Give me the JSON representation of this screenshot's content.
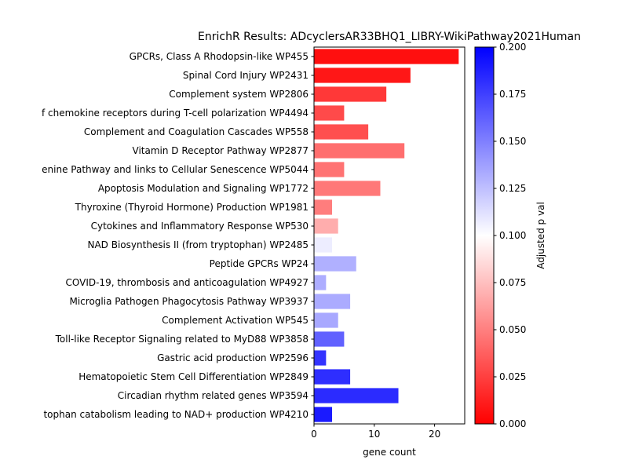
{
  "chart_data": {
    "type": "bar",
    "orientation": "horizontal",
    "title": "EnrichR Results: ADcyclersAR33BHQ1_LIBRY-WikiPathway2021Human",
    "xlabel": "gene count",
    "ylabel": "",
    "xlim": [
      0,
      25
    ],
    "xticks": [
      "0",
      "10",
      "20"
    ],
    "grid": false,
    "categories": [
      "GPCRs, Class A Rhodopsin-like WP455",
      "Spinal Cord Injury WP2431",
      "Complement system WP2806",
      "f chemokine receptors during T-cell polarization WP4494",
      "Complement and Coagulation Cascades WP558",
      "Vitamin D Receptor Pathway WP2877",
      "enine Pathway and links to Cellular Senescence WP5044",
      "Apoptosis Modulation and Signaling WP1772",
      "Thyroxine (Thyroid Hormone) Production WP1981",
      "Cytokines and Inflammatory Response WP530",
      "NAD Biosynthesis II (from tryptophan) WP2485",
      "Peptide GPCRs WP24",
      "COVID-19, thrombosis and anticoagulation WP4927",
      "Microglia Pathogen Phagocytosis Pathway WP3937",
      "Complement Activation WP545",
      "Toll-like Receptor Signaling related to MyD88 WP3858",
      "Gastric acid production WP2596",
      "Hematopoietic Stem Cell Differentiation WP2849",
      "Circadian rhythm related genes WP3594",
      "tophan catabolism leading to NAD+ production WP4210"
    ],
    "values": [
      24,
      16,
      12,
      5,
      9,
      15,
      5,
      11,
      3,
      4,
      3,
      7,
      2,
      6,
      4,
      5,
      2,
      6,
      14,
      3
    ],
    "adjusted_p": [
      0.006,
      0.009,
      0.022,
      0.029,
      0.031,
      0.043,
      0.045,
      0.047,
      0.049,
      0.068,
      0.107,
      0.131,
      0.132,
      0.133,
      0.134,
      0.162,
      0.18,
      0.182,
      0.183,
      0.19
    ],
    "colorbar": {
      "label": "Adjusted p val",
      "range": [
        0,
        0.2
      ],
      "ticks": [
        "0.000",
        "0.025",
        "0.050",
        "0.075",
        "0.100",
        "0.125",
        "0.150",
        "0.175",
        "0.200"
      ],
      "colormap": "bwr_r",
      "low_color": "#ff0000",
      "mid_color": "#ffffff",
      "high_color": "#0000ff"
    }
  }
}
